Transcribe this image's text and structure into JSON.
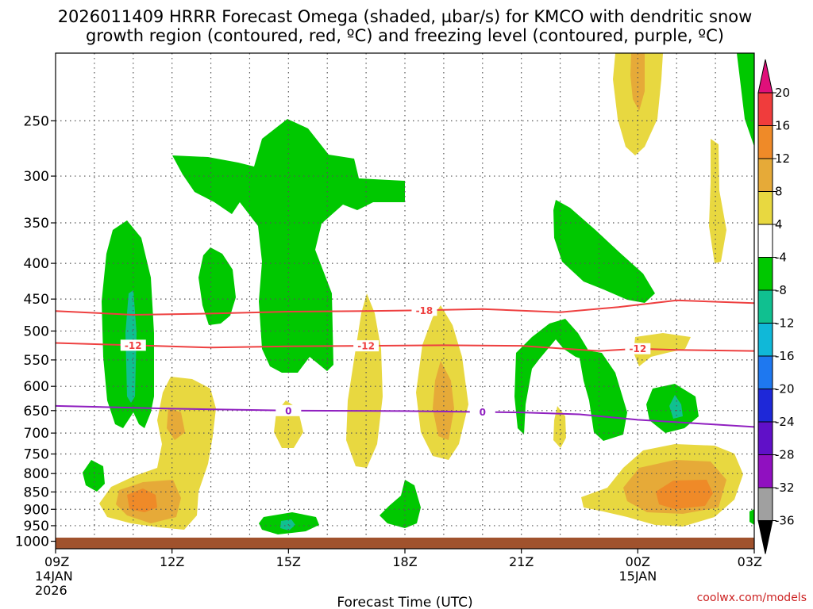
{
  "chart_data": {
    "type": "contour",
    "title_line1": "2026011409 HRRR Forecast Omega (shaded, µbar/s) for KMCO with dendritic snow",
    "title_line2": "growth region (contoured, red, ºC) and freezing level (contoured, purple, ºC)",
    "xlabel": "Forecast Time (UTC)",
    "credit": "coolwx.com/models",
    "x_range_hours": [
      0,
      18
    ],
    "y_levels_hpa": [
      250,
      300,
      350,
      400,
      450,
      500,
      550,
      600,
      650,
      700,
      750,
      800,
      850,
      900,
      950,
      1000
    ],
    "y_range_hpa": [
      200,
      1025
    ],
    "x_ticks": [
      {
        "hour": 0,
        "label": "09Z",
        "date": "14JAN",
        "year": "2026"
      },
      {
        "hour": 3,
        "label": "12Z"
      },
      {
        "hour": 6,
        "label": "15Z"
      },
      {
        "hour": 9,
        "label": "18Z"
      },
      {
        "hour": 12,
        "label": "21Z"
      },
      {
        "hour": 15,
        "label": "00Z",
        "date": "15JAN"
      },
      {
        "hour": 18,
        "label": "03Z"
      }
    ],
    "colorbar": {
      "levels": [
        20,
        16,
        12,
        8,
        4,
        -4,
        -8,
        -12,
        -16,
        -20,
        -24,
        -28,
        -32,
        -36
      ],
      "bins": [
        {
          "range": "20 to 16",
          "color": "#f03c3c"
        },
        {
          "range": "16 to 12",
          "color": "#ef8a28"
        },
        {
          "range": "12 to 8",
          "color": "#e6aa38"
        },
        {
          "range": "8 to 4",
          "color": "#e8d840"
        },
        {
          "range": "4 to -4",
          "color": "#ffffff"
        },
        {
          "range": "-4 to -8",
          "color": "#00c800"
        },
        {
          "range": "-8 to -12",
          "color": "#10c090"
        },
        {
          "range": "-12 to -16",
          "color": "#10b8d8"
        },
        {
          "range": "-16 to -20",
          "color": "#1e78f0"
        },
        {
          "range": "-20 to -24",
          "color": "#1e28d8"
        },
        {
          "range": "-24 to -28",
          "color": "#6010c8"
        },
        {
          "range": "-28 to -32",
          "color": "#9010c0"
        },
        {
          "range": "-32 to -36",
          "color": "#a0a0a0"
        }
      ],
      "over_color": "#e0107a",
      "under_color": "#000000"
    },
    "contours": [
      {
        "name": "-18C isotherm",
        "label": "-18",
        "color": "#ee4040",
        "points_hour_hpa": [
          [
            0,
            468
          ],
          [
            2,
            474
          ],
          [
            4,
            472
          ],
          [
            6,
            469
          ],
          [
            8,
            468
          ],
          [
            9.5,
            467
          ],
          [
            11,
            465
          ],
          [
            13,
            470
          ],
          [
            14.5,
            462
          ],
          [
            16,
            452
          ],
          [
            18,
            456
          ]
        ]
      },
      {
        "name": "-12C isotherm",
        "label": "-12",
        "color": "#ee4040",
        "points_hour_hpa": [
          [
            0,
            520
          ],
          [
            2,
            524
          ],
          [
            4,
            528
          ],
          [
            6,
            526
          ],
          [
            8,
            525
          ],
          [
            10,
            524
          ],
          [
            12,
            525
          ],
          [
            14,
            534
          ],
          [
            15,
            530
          ],
          [
            16,
            532
          ],
          [
            18,
            534
          ]
        ]
      },
      {
        "name": "freezing level 0C",
        "label": "0",
        "color": "#9020c0",
        "points_hour_hpa": [
          [
            0,
            640
          ],
          [
            3,
            646
          ],
          [
            6,
            650
          ],
          [
            9,
            651
          ],
          [
            12,
            654
          ],
          [
            13.5,
            658
          ],
          [
            15,
            670
          ],
          [
            16.5,
            678
          ],
          [
            18,
            686
          ]
        ]
      }
    ],
    "shaded_regions": [
      {
        "type": "ascent (negative omega)",
        "bin": "-4 to -8",
        "area": "hours 1.2-2.4, 360-700 hPa"
      },
      {
        "type": "ascent (negative omega)",
        "bin": "-8 to -12",
        "area": "hour 2, 470-615 hPa core"
      },
      {
        "type": "ascent (negative omega)",
        "bin": "-4 to -8",
        "area": "hours 3-9, 255-460 hPa"
      },
      {
        "type": "ascent (negative omega)",
        "bin": "-4 to -8",
        "area": "hours 3.6-4.5, 380-500 hPa"
      },
      {
        "type": "ascent (negative omega)",
        "bin": "-4 to -8",
        "area": "hours 0.7-1.3, 775-865 hPa"
      },
      {
        "type": "ascent (negative omega)",
        "bin": "-4 to -8",
        "area": "hours 5.3-6.8, 945-975 hPa"
      },
      {
        "type": "ascent (negative omega)",
        "bin": "-4 to -8",
        "area": "hours 9.3-10.2, 830-965 hPa"
      },
      {
        "type": "ascent (negative omega)",
        "bin": "-4 to -8",
        "area": "hours 11.8-13, 490-700 hPa"
      },
      {
        "type": "ascent (negative omega)",
        "bin": "-4 to -8",
        "area": "hours 13-15.5, 335-460 hPa"
      },
      {
        "type": "ascent (negative omega)",
        "bin": "-4 to -8",
        "area": "hours 13.4-14.7, 535-700 hPa"
      },
      {
        "type": "ascent (negative omega)",
        "bin": "-4 to -8",
        "area": "hours 15.4-16.6, 630-690 hPa"
      },
      {
        "type": "ascent (negative omega)",
        "bin": "-4 to -8",
        "area": "hour 18 edge, 200-280 hPa"
      },
      {
        "type": "subsidence (positive omega)",
        "bin": "8 to 4",
        "area": "hours 0.9-4, 630-965 hPa"
      },
      {
        "type": "subsidence (positive omega)",
        "bin": "12 to 8",
        "area": "hours 1.5-3, 690-925 hPa"
      },
      {
        "type": "subsidence (positive omega)",
        "bin": "16 to 12",
        "area": "hours 2-2.6, 875-920 hPa"
      },
      {
        "type": "subsidence (positive omega)",
        "bin": "8 to 4",
        "area": "hours 7.4-8.3, 450-790 hPa"
      },
      {
        "type": "subsidence (positive omega)",
        "bin": "8 to 4",
        "area": "hours 9.4-11, 480-780 hPa"
      },
      {
        "type": "subsidence (positive omega)",
        "bin": "12 to 8",
        "area": "hours 9.9-10.6, 570-690 hPa"
      },
      {
        "type": "subsidence (positive omega)",
        "bin": "8 to 4",
        "area": "hours 14.4-15.9, 200-290 hPa"
      },
      {
        "type": "subsidence (positive omega)",
        "bin": "8 to 4",
        "area": "hours 13.2-18, 760-960 hPa"
      },
      {
        "type": "subsidence (positive omega)",
        "bin": "16 to 12",
        "area": "hours 16-17.5, 840-900 hPa"
      }
    ],
    "ground_fill_color": "#a0522d"
  }
}
